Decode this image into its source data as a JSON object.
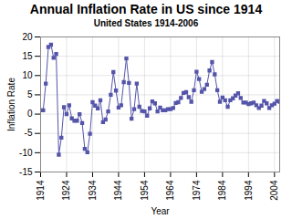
{
  "chart_data": {
    "type": "line",
    "title": "Annual Inflation Rate in US since 1914",
    "subtitle": "United States 1914-2006",
    "xlabel": "Year",
    "ylabel": "Inflation Rate",
    "color": "#5555aa",
    "marker": "square",
    "xlim": [
      1914,
      2006
    ],
    "xticks": [
      1914,
      1924,
      1934,
      1944,
      1954,
      1964,
      1974,
      1984,
      1994,
      2004
    ],
    "ylim": [
      -15,
      20
    ],
    "yticks": [
      -15,
      -10,
      -5,
      0,
      5,
      10,
      15,
      20
    ],
    "grid": true,
    "x": [
      1914,
      1915,
      1916,
      1917,
      1918,
      1919,
      1920,
      1921,
      1922,
      1923,
      1924,
      1925,
      1926,
      1927,
      1928,
      1929,
      1930,
      1931,
      1932,
      1933,
      1934,
      1935,
      1936,
      1937,
      1938,
      1939,
      1940,
      1941,
      1942,
      1943,
      1944,
      1945,
      1946,
      1947,
      1948,
      1949,
      1950,
      1951,
      1952,
      1953,
      1954,
      1955,
      1956,
      1957,
      1958,
      1959,
      1960,
      1961,
      1962,
      1963,
      1964,
      1965,
      1966,
      1967,
      1968,
      1969,
      1970,
      1971,
      1972,
      1973,
      1974,
      1975,
      1976,
      1977,
      1978,
      1979,
      1980,
      1981,
      1982,
      1983,
      1984,
      1985,
      1986,
      1987,
      1988,
      1989,
      1990,
      1991,
      1992,
      1993,
      1994,
      1995,
      1996,
      1997,
      1998,
      1999,
      2000,
      2001,
      2002,
      2003,
      2004,
      2005,
      2006
    ],
    "values": [
      1.0,
      1.0,
      7.9,
      17.4,
      18.0,
      14.6,
      15.6,
      -10.5,
      -6.1,
      1.8,
      0.0,
      2.3,
      -1.1,
      -1.7,
      -1.7,
      0.0,
      -2.3,
      -9.0,
      -9.9,
      -5.1,
      3.1,
      2.2,
      1.5,
      3.6,
      -2.1,
      -1.4,
      0.7,
      5.0,
      10.9,
      6.1,
      1.7,
      2.3,
      8.3,
      14.4,
      8.1,
      -1.2,
      1.3,
      7.9,
      1.9,
      0.8,
      0.7,
      -0.4,
      1.5,
      3.3,
      2.8,
      0.7,
      1.7,
      1.0,
      1.0,
      1.3,
      1.3,
      1.6,
      2.9,
      3.1,
      4.2,
      5.5,
      5.7,
      4.4,
      3.2,
      6.2,
      11.0,
      9.1,
      5.8,
      6.5,
      7.6,
      11.3,
      13.5,
      10.3,
      6.2,
      3.2,
      4.3,
      3.6,
      1.9,
      3.6,
      4.1,
      4.8,
      5.4,
      4.2,
      3.0,
      3.0,
      2.6,
      2.8,
      3.0,
      2.3,
      1.6,
      2.2,
      3.4,
      2.8,
      1.6,
      2.3,
      2.7,
      3.4,
      3.2
    ]
  }
}
